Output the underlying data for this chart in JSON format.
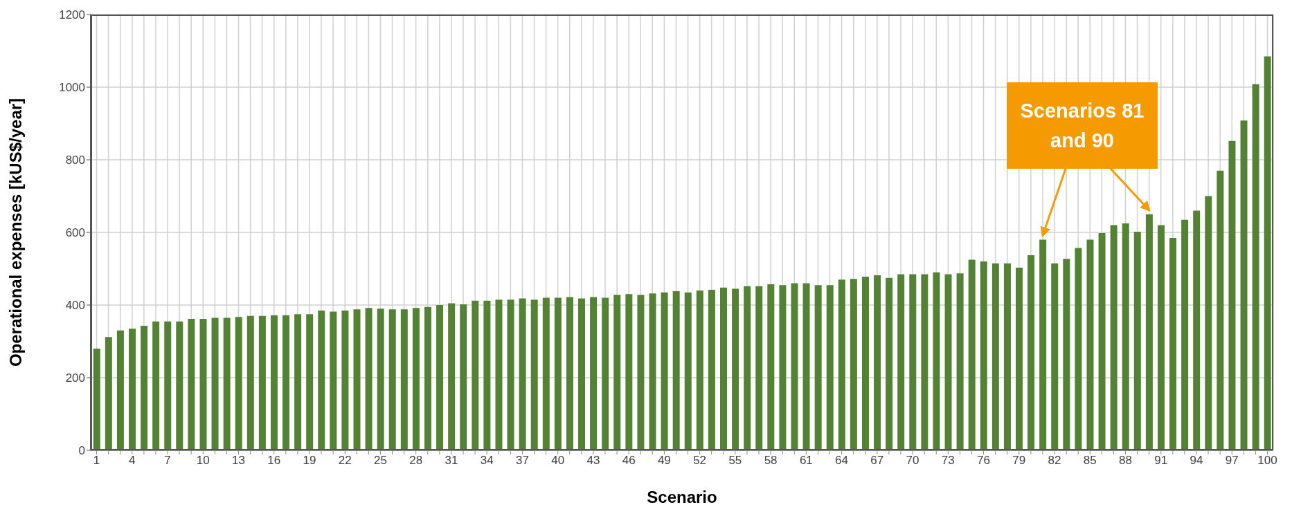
{
  "chart_data": {
    "type": "bar",
    "xlabel": "Scenario",
    "ylabel": "Operational expenses [kUS$/year]",
    "categories": [
      "1",
      null,
      null,
      "4",
      null,
      null,
      "7",
      null,
      null,
      "10",
      null,
      null,
      "13",
      null,
      null,
      "16",
      null,
      null,
      "19",
      null,
      null,
      "22",
      null,
      null,
      "25",
      null,
      null,
      "28",
      null,
      null,
      "31",
      null,
      null,
      "34",
      null,
      null,
      "37",
      null,
      null,
      "40",
      null,
      null,
      "43",
      null,
      null,
      "46",
      null,
      null,
      "49",
      null,
      null,
      "52",
      null,
      null,
      "55",
      null,
      null,
      "58",
      null,
      null,
      "61",
      null,
      null,
      "64",
      null,
      null,
      "67",
      null,
      null,
      "70",
      null,
      null,
      "73",
      null,
      null,
      "76",
      null,
      null,
      "79",
      null,
      null,
      "82",
      null,
      null,
      "85",
      null,
      null,
      "88",
      null,
      null,
      "91",
      null,
      null,
      "94",
      null,
      null,
      "97",
      null,
      null,
      "100"
    ],
    "values": [
      280,
      312,
      330,
      335,
      343,
      355,
      355,
      355,
      362,
      362,
      365,
      365,
      367,
      370,
      370,
      372,
      372,
      375,
      375,
      385,
      382,
      385,
      388,
      392,
      390,
      388,
      388,
      392,
      395,
      400,
      405,
      402,
      412,
      412,
      415,
      415,
      418,
      415,
      420,
      420,
      422,
      418,
      422,
      420,
      428,
      430,
      428,
      432,
      435,
      438,
      435,
      440,
      442,
      448,
      445,
      452,
      452,
      457,
      455,
      460,
      460,
      455,
      455,
      470,
      472,
      478,
      482,
      475,
      485,
      485,
      485,
      490,
      485,
      487,
      525,
      520,
      515,
      515,
      503,
      537,
      580,
      515,
      527,
      557,
      580,
      598,
      620,
      625,
      602,
      650,
      620,
      585,
      635,
      660,
      700,
      770,
      852,
      908,
      1008,
      1085
    ],
    "color": "#548235",
    "ylim": [
      0,
      1200
    ],
    "yticks": [
      0,
      200,
      400,
      600,
      800,
      1000,
      1200
    ],
    "grid": true,
    "annotations": [
      "Scenarios 81 and 90"
    ]
  }
}
